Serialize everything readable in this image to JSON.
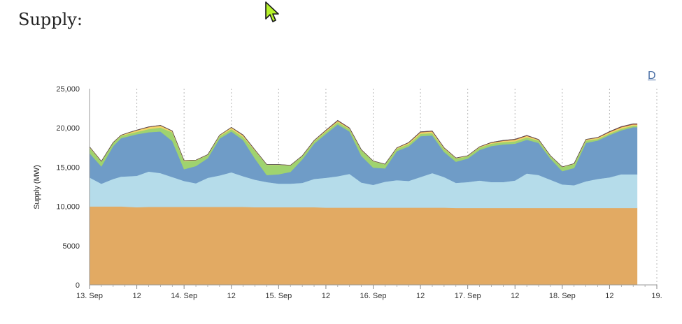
{
  "page": {
    "title": "Supply:",
    "corner_link": "D"
  },
  "icons": {
    "cursor": "mouse-pointer-icon"
  },
  "chart_data": {
    "type": "area",
    "stacked": true,
    "title": "",
    "xlabel": "",
    "ylabel": "Supply (MW)",
    "ylim": [
      0,
      25000
    ],
    "yticks": [
      0,
      5000,
      10000,
      15000,
      20000,
      25000
    ],
    "ytick_labels": [
      "0",
      "5000",
      "10,000",
      "15,000",
      "20,000",
      "25,000"
    ],
    "xlim": [
      "13. Sep 00:00",
      "19. Sep 03:00"
    ],
    "xticks": [
      {
        "t": 0,
        "label": "13. Sep"
      },
      {
        "t": 12,
        "label": "12"
      },
      {
        "t": 24,
        "label": "14. Sep"
      },
      {
        "t": 36,
        "label": "12"
      },
      {
        "t": 48,
        "label": "15. Sep"
      },
      {
        "t": 60,
        "label": "12"
      },
      {
        "t": 72,
        "label": "16. Sep"
      },
      {
        "t": 84,
        "label": "12"
      },
      {
        "t": 96,
        "label": "17. Sep"
      },
      {
        "t": 108,
        "label": "12"
      },
      {
        "t": 120,
        "label": "18. Sep"
      },
      {
        "t": 132,
        "label": "12"
      },
      {
        "t": 144,
        "label": "19."
      }
    ],
    "grid_vertical": "dotted",
    "legend": "none",
    "x_hours": [
      0,
      3,
      6,
      8,
      10,
      12,
      15,
      18,
      21,
      24,
      27,
      30,
      33,
      36,
      39,
      42,
      45,
      48,
      51,
      54,
      57,
      60,
      63,
      66,
      69,
      72,
      75,
      78,
      81,
      84,
      87,
      90,
      93,
      96,
      99,
      102,
      105,
      108,
      111,
      114,
      117,
      120,
      123,
      126,
      129,
      132,
      135,
      138,
      139
    ],
    "series": [
      {
        "color": "#e2aa63",
        "values": [
          10000,
          10000,
          10000,
          10000,
          9950,
          9900,
          9950,
          9950,
          9950,
          9950,
          9950,
          9950,
          9950,
          9950,
          9950,
          9900,
          9900,
          9900,
          9900,
          9900,
          9900,
          9850,
          9850,
          9850,
          9850,
          9850,
          9850,
          9850,
          9850,
          9850,
          9850,
          9850,
          9800,
          9800,
          9800,
          9800,
          9800,
          9800,
          9800,
          9800,
          9800,
          9800,
          9800,
          9800,
          9800,
          9800,
          9800,
          9800,
          9800
        ]
      },
      {
        "color": "#b5dcea",
        "values": [
          3700,
          2900,
          3500,
          3800,
          3900,
          4000,
          4500,
          4300,
          3800,
          3300,
          3000,
          3700,
          4000,
          4400,
          3900,
          3500,
          3200,
          3000,
          3000,
          3100,
          3600,
          3800,
          4000,
          4300,
          3200,
          2900,
          3300,
          3500,
          3400,
          3900,
          4400,
          3900,
          3200,
          3300,
          3500,
          3300,
          3300,
          3500,
          4400,
          4200,
          3600,
          3000,
          2900,
          3400,
          3700,
          3900,
          4300,
          4300,
          4300
        ]
      },
      {
        "color": "#6f9cc7",
        "values": [
          3100,
          2200,
          4200,
          4900,
          5100,
          5300,
          5000,
          5300,
          4600,
          1500,
          2200,
          2500,
          4700,
          5200,
          4600,
          2700,
          900,
          1200,
          1500,
          3000,
          4500,
          5600,
          6600,
          5400,
          3400,
          2200,
          1700,
          3700,
          4400,
          5200,
          4800,
          3200,
          2700,
          3000,
          3900,
          4600,
          4800,
          4700,
          4300,
          4100,
          2700,
          1700,
          2200,
          4900,
          4900,
          5400,
          5600,
          6000,
          6000
        ]
      },
      {
        "color": "#9fd36f",
        "values": [
          700,
          600,
          400,
          300,
          300,
          300,
          400,
          500,
          1100,
          1000,
          700,
          400,
          300,
          300,
          400,
          1000,
          1300,
          1200,
          800,
          400,
          300,
          300,
          300,
          300,
          700,
          800,
          500,
          300,
          300,
          300,
          300,
          400,
          400,
          300,
          300,
          300,
          300,
          300,
          300,
          300,
          300,
          500,
          500,
          300,
          200,
          200,
          200,
          200,
          200
        ]
      },
      {
        "color": "#f1d56b",
        "values": [
          100,
          50,
          50,
          80,
          150,
          200,
          250,
          250,
          150,
          100,
          50,
          50,
          120,
          200,
          200,
          80,
          40,
          40,
          40,
          50,
          80,
          120,
          150,
          100,
          60,
          40,
          40,
          100,
          150,
          200,
          200,
          100,
          60,
          60,
          80,
          120,
          150,
          200,
          200,
          100,
          60,
          40,
          60,
          120,
          150,
          180,
          200,
          150,
          150
        ]
      },
      {
        "color": "#a33c3c",
        "values": [
          0,
          0,
          0,
          0,
          20,
          30,
          40,
          40,
          20,
          0,
          0,
          0,
          0,
          30,
          50,
          20,
          0,
          0,
          0,
          0,
          20,
          40,
          60,
          40,
          20,
          0,
          0,
          20,
          40,
          60,
          60,
          30,
          20,
          0,
          20,
          40,
          60,
          60,
          50,
          30,
          0,
          0,
          0,
          20,
          40,
          60,
          70,
          80,
          80
        ]
      }
    ]
  }
}
